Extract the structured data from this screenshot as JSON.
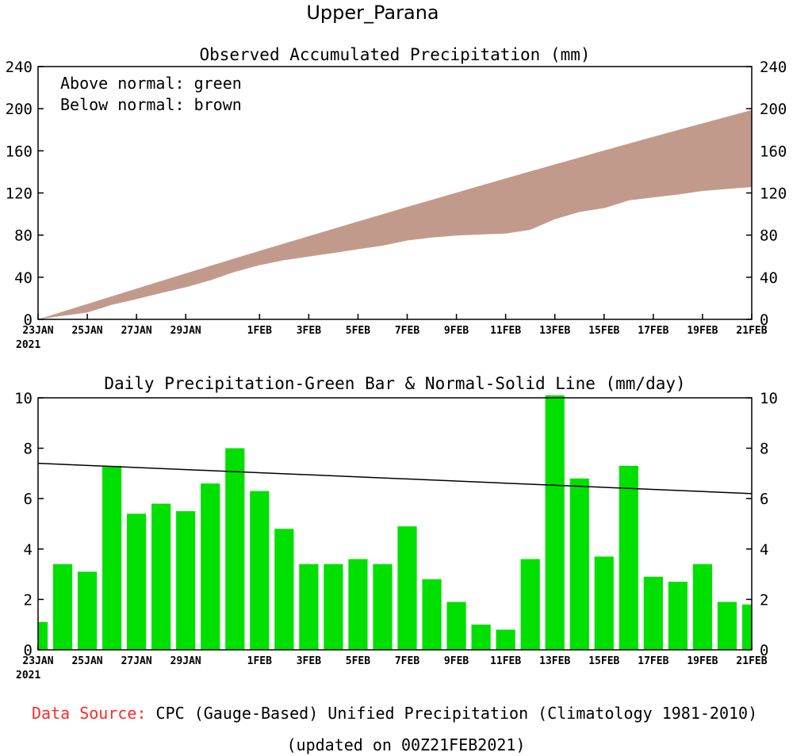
{
  "title": "Upper_Parana",
  "footer": {
    "source_label": "Data Source:",
    "source_text": " CPC (Gauge-Based) Unified Precipitation (Climatology 1981-2010)",
    "updated": "(updated on 00Z21FEB2021)"
  },
  "colors": {
    "below_fill": "#c29a8c",
    "bar_green": "#00e000",
    "normal_line": "#000000",
    "source_red": "#ff2a2a"
  },
  "chart_data": [
    {
      "type": "area",
      "title": "Observed Accumulated Precipitation (mm)",
      "annotations": [
        "Above normal: green",
        "Below normal: brown"
      ],
      "x_ticks": [
        "23JAN",
        "25JAN",
        "27JAN",
        "29JAN",
        "1FEB",
        "3FEB",
        "5FEB",
        "7FEB",
        "9FEB",
        "11FEB",
        "13FEB",
        "15FEB",
        "17FEB",
        "19FEB",
        "21FEB"
      ],
      "x_tick_days": [
        0,
        2,
        4,
        6,
        9,
        11,
        13,
        15,
        17,
        19,
        21,
        23,
        25,
        27,
        29
      ],
      "x_year": "2021",
      "y_ticks": [
        0,
        40,
        80,
        120,
        160,
        200,
        240
      ],
      "xlim": [
        0,
        29
      ],
      "ylim": [
        0,
        240
      ],
      "series": [
        {
          "name": "normal",
          "values": [
            0,
            7.3,
            14.6,
            21.9,
            29.2,
            36.4,
            43.6,
            50.8,
            57.9,
            65.0,
            72.0,
            79.0,
            86.0,
            92.9,
            99.8,
            106.7,
            113.5,
            120.3,
            127.1,
            133.8,
            140.5,
            147.1,
            153.7,
            160.3,
            166.8,
            173.3,
            179.7,
            186.1,
            192.4,
            198.7
          ]
        },
        {
          "name": "observed",
          "values": [
            0,
            3.4,
            6.5,
            13.8,
            19.2,
            25.0,
            30.5,
            37.1,
            45.1,
            51.4,
            56.2,
            59.6,
            63.0,
            66.6,
            70.0,
            74.9,
            77.7,
            79.6,
            80.6,
            81.4,
            85.0,
            95.1,
            101.9,
            105.6,
            112.9,
            115.8,
            118.5,
            121.9,
            123.8,
            125.6
          ]
        }
      ]
    },
    {
      "type": "bar",
      "title": "Daily Precipitation-Green Bar & Normal-Solid Line (mm/day)",
      "x_ticks": [
        "23JAN",
        "25JAN",
        "27JAN",
        "29JAN",
        "1FEB",
        "3FEB",
        "5FEB",
        "7FEB",
        "9FEB",
        "11FEB",
        "13FEB",
        "15FEB",
        "17FEB",
        "19FEB",
        "21FEB"
      ],
      "x_tick_days": [
        0,
        2,
        4,
        6,
        9,
        11,
        13,
        15,
        17,
        19,
        21,
        23,
        25,
        27,
        29
      ],
      "x_year": "2021",
      "y_ticks": [
        0,
        2,
        4,
        6,
        8,
        10
      ],
      "xlim": [
        0,
        29
      ],
      "ylim": [
        0,
        10
      ],
      "values": [
        1.1,
        3.4,
        3.1,
        7.3,
        5.4,
        5.8,
        5.5,
        6.6,
        8.0,
        6.3,
        4.8,
        3.4,
        3.4,
        3.6,
        3.4,
        4.9,
        2.8,
        1.9,
        1.0,
        0.8,
        3.6,
        10.1,
        6.8,
        3.7,
        7.3,
        2.9,
        2.7,
        3.4,
        1.9,
        1.8
      ],
      "normal_line": {
        "start": 7.4,
        "end": 6.2
      }
    }
  ]
}
